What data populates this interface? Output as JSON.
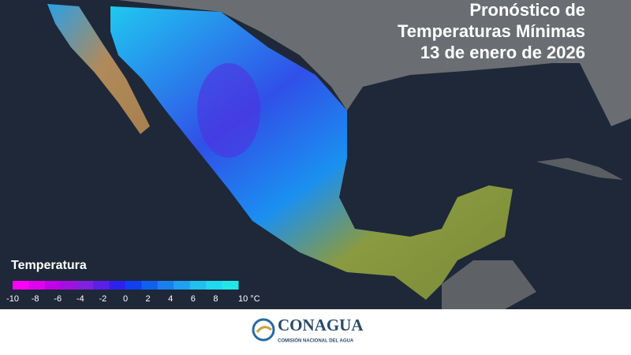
{
  "header": {
    "title_lines": [
      "Pronóstico de",
      "Temperaturas Mínimas",
      "13 de enero de 2026"
    ]
  },
  "legend": {
    "title": "Temperatura",
    "range": [
      -10,
      10
    ],
    "colors": [
      "#ff00ff",
      "#e000f0",
      "#c000e8",
      "#a010e0",
      "#8020e0",
      "#5a20e8",
      "#3020f0",
      "#1040f0",
      "#1060f0",
      "#1a80f0",
      "#20a0f0",
      "#20c0f0",
      "#20d8f0",
      "#20e8e8"
    ],
    "ticks": [
      -10,
      -8,
      -6,
      -4,
      -2,
      0,
      2,
      4,
      6,
      8,
      {
        "value": 10,
        "label": "10 °C"
      }
    ]
  },
  "footer": {
    "logo_name": "CONAGUA",
    "logo_subtitle": "COMISIÓN NACIONAL DEL AGUA"
  }
}
